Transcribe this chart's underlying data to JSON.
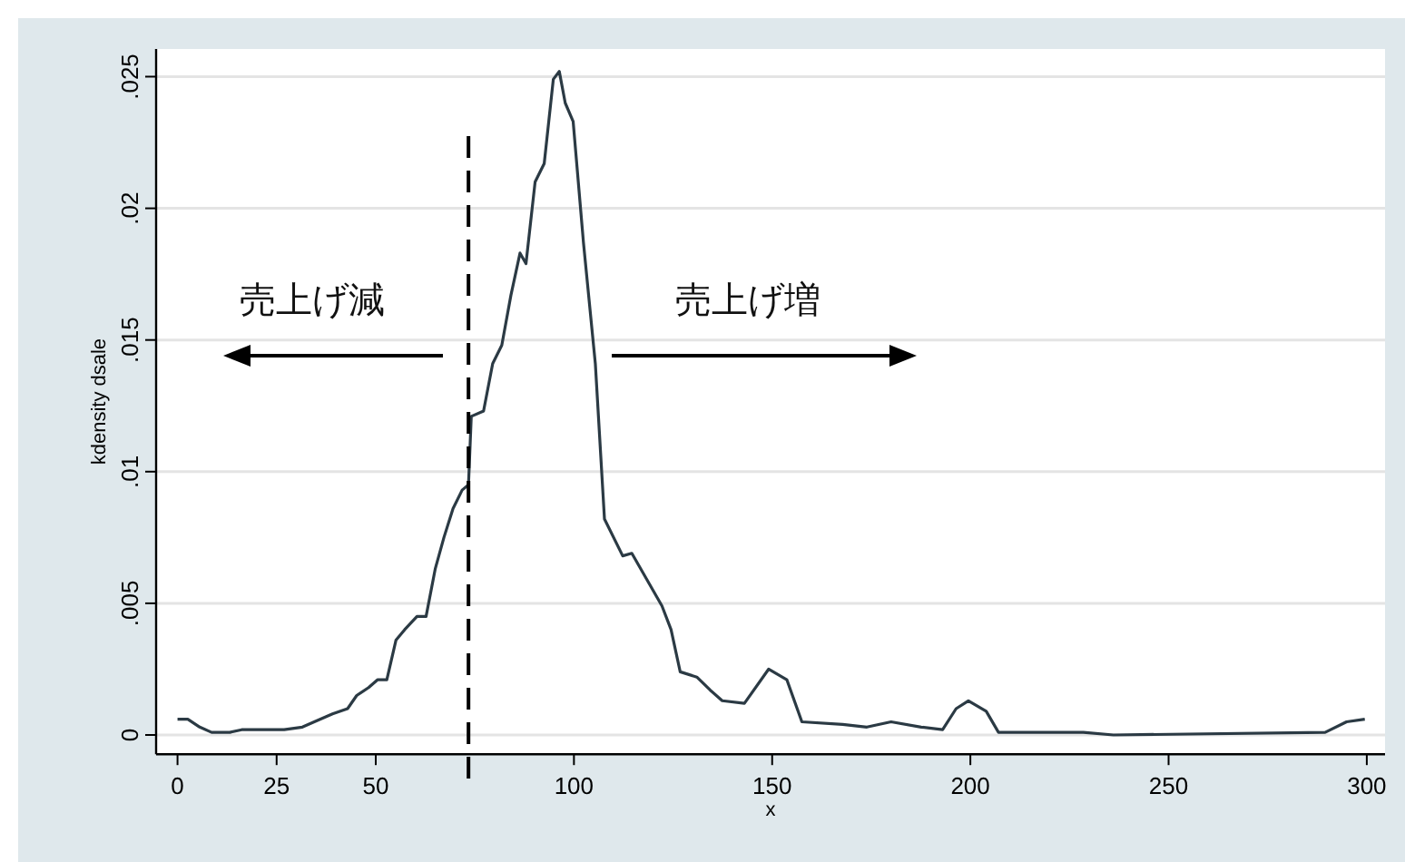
{
  "chart_data": {
    "type": "line",
    "xlabel": "x",
    "ylabel": "kdensity dsale",
    "annotations": [
      "売上げ減",
      "売上げ増"
    ],
    "xlim": [
      -5.4,
      304.6
    ],
    "ylim": [
      -0.00073,
      0.02605
    ],
    "xticks": [
      0,
      25,
      50,
      100,
      150,
      200,
      250,
      300
    ],
    "yticks": [
      {
        "value": 0,
        "label": "0"
      },
      {
        "value": 0.005,
        "label": ".005"
      },
      {
        "value": 0.01,
        "label": ".01"
      },
      {
        "value": 0.015,
        "label": ".015"
      },
      {
        "value": 0.02,
        "label": ".02"
      },
      {
        "value": 0.025,
        "label": ".025"
      }
    ],
    "grid": "y",
    "marker": "none",
    "line_style": "solid",
    "ref_lines": [
      {
        "axis": "x",
        "value": 73.4,
        "color": "#000000",
        "line_style": "dashed"
      }
    ],
    "series": [
      {
        "color": "#2b3a44",
        "x": [
          0,
          2.6,
          5.6,
          8.6,
          13.2,
          16.2,
          23.8,
          26.9,
          31.5,
          34.5,
          39.1,
          42.9,
          45.2,
          48.2,
          50.5,
          52.8,
          55.1,
          57.3,
          60.4,
          62.7,
          65,
          67.2,
          69.5,
          71.8,
          73.4,
          74.1,
          77.2,
          79.5,
          81.8,
          84.1,
          86.4,
          87.9,
          90.2,
          92.5,
          94.8,
          96.3,
          97.8,
          99.8,
          102.4,
          105.4,
          107.7,
          112.3,
          114.6,
          118.4,
          122.2,
          124.5,
          126.8,
          131,
          134.4,
          137.4,
          143,
          149.1,
          153.7,
          157.5,
          167.8,
          173.9,
          180,
          187.6,
          193,
          196.4,
          199.5,
          204,
          207.1,
          220.8,
          228.5,
          236.1,
          289.5,
          294.9,
          299.5
        ],
        "values": [
          0.0006,
          0.0006,
          0.0003,
          0.0001,
          0.0001,
          0.0002,
          0.0002,
          0.0002,
          0.0003,
          0.0005,
          0.0008,
          0.001,
          0.0015,
          0.0018,
          0.0021,
          0.0021,
          0.0036,
          0.004,
          0.0045,
          0.0045,
          0.0063,
          0.0075,
          0.0086,
          0.0093,
          0.0095,
          0.0121,
          0.0123,
          0.0141,
          0.0148,
          0.0167,
          0.0183,
          0.0179,
          0.021,
          0.0217,
          0.0249,
          0.0252,
          0.024,
          0.0233,
          0.0187,
          0.0141,
          0.0082,
          0.0068,
          0.0069,
          0.0059,
          0.0049,
          0.004,
          0.0024,
          0.0022,
          0.0017,
          0.0013,
          0.0012,
          0.0025,
          0.0021,
          0.0005,
          0.0004,
          0.0003,
          0.0005,
          0.0003,
          0.0002,
          0.001,
          0.0013,
          0.0009,
          0.0001,
          0.0001,
          0.0001,
          0.0,
          0.0001,
          0.0005,
          0.0006
        ]
      }
    ]
  }
}
